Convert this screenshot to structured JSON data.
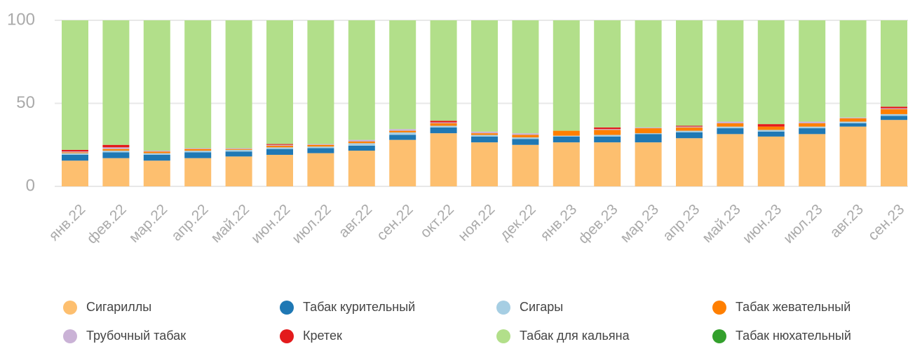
{
  "chart_data": {
    "type": "stacked_bar",
    "categories": [
      "янв.22",
      "фев.22",
      "мар.22",
      "апр.22",
      "май.22",
      "июн.22",
      "июл.22",
      "авг.22",
      "сен.22",
      "окт.22",
      "ноя.22",
      "дек.22",
      "янв.23",
      "фев.23",
      "мар.23",
      "апр.23",
      "май.23",
      "июн.23",
      "июл.23",
      "авг.23",
      "сен.23"
    ],
    "series": [
      {
        "name": "Сигариллы",
        "color": "#fdbf6f",
        "values": [
          15.5,
          17,
          15.5,
          17,
          18,
          19,
          20,
          21.5,
          28,
          32,
          26.5,
          25,
          26.5,
          26.5,
          26.5,
          29,
          31.5,
          30,
          31.5,
          36,
          40
        ]
      },
      {
        "name": "Табак курительный",
        "color": "#1f78b4",
        "values": [
          3.5,
          3.5,
          3.5,
          3.5,
          3,
          3.5,
          3,
          3,
          3,
          3.5,
          3.5,
          3.5,
          3.5,
          3.5,
          5,
          3.5,
          3.5,
          3,
          3.5,
          2,
          2.5
        ]
      },
      {
        "name": "Сигары",
        "color": "#a6cee3",
        "values": [
          1,
          1,
          1,
          1,
          1,
          1,
          1,
          1.5,
          1.5,
          1,
          1,
          1,
          0.5,
          1,
          0.5,
          1,
          1,
          1,
          1,
          1,
          1
        ]
      },
      {
        "name": "Табак жевательный",
        "color": "#ff7f00",
        "values": [
          0.5,
          1,
          1,
          1,
          0.5,
          1,
          1,
          1,
          1,
          1.5,
          1,
          1.5,
          3,
          3,
          3,
          2,
          2,
          2,
          2,
          2,
          3
        ]
      },
      {
        "name": "Трубочный табак",
        "color": "#cab2d6",
        "values": [
          0.5,
          1,
          0.5,
          0.5,
          0.5,
          0.5,
          0.5,
          1,
          1,
          0.5,
          1,
          1,
          0,
          0.5,
          0.5,
          0.5,
          1,
          0,
          1,
          0.5,
          0.5
        ]
      },
      {
        "name": "Кретек",
        "color": "#e31a1c",
        "values": [
          1,
          1.5,
          0,
          0,
          0,
          0.5,
          0,
          0,
          0,
          1,
          0,
          0,
          0,
          1,
          0,
          0.5,
          0,
          1.5,
          0,
          0,
          1
        ]
      },
      {
        "name": "Табак для кальяна",
        "color": "#b2df8a",
        "values": [
          78,
          75,
          78.5,
          77,
          77,
          74.5,
          74.5,
          72,
          65.5,
          60.5,
          67,
          68,
          66.5,
          64.5,
          64.5,
          63.5,
          61,
          62.5,
          61,
          58.5,
          52
        ]
      },
      {
        "name": "Табак нюхательный",
        "color": "#33a02c",
        "values": [
          0,
          0,
          0,
          0,
          0,
          0,
          0,
          0,
          0,
          0,
          0,
          0,
          0,
          0,
          0,
          0,
          0,
          0,
          0,
          0,
          0
        ]
      }
    ],
    "ylim": [
      0,
      100
    ],
    "yticks": [
      0,
      50,
      100
    ],
    "grid": true
  }
}
